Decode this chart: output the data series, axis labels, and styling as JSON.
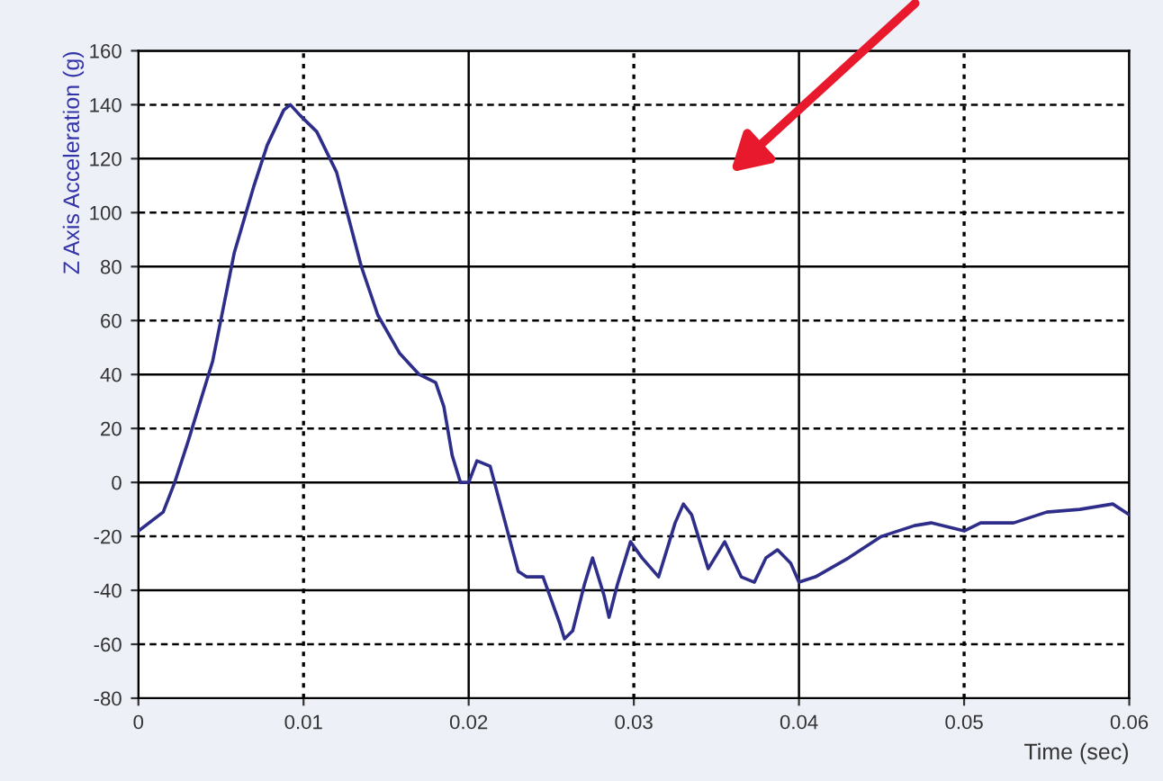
{
  "chart_data": {
    "type": "line",
    "xlabel": "Time (sec)",
    "ylabel": "Z Axis Acceleration (g)",
    "xlim": [
      0,
      0.06
    ],
    "ylim": [
      -80,
      160
    ],
    "xticks": [
      {
        "value": 0,
        "label": "0"
      },
      0.01,
      0.02,
      0.03,
      0.04,
      0.05,
      0.06
    ],
    "yticks": [
      -80,
      -60,
      -40,
      -20,
      0,
      20,
      40,
      60,
      80,
      100,
      120,
      140,
      160
    ],
    "grid": true,
    "marker": "none",
    "line_style": "solid",
    "series": [
      {
        "color": "#2e2e8a",
        "x": [
          0,
          0.0015,
          0.0022,
          0.003,
          0.0045,
          0.0058,
          0.007,
          0.0078,
          0.0088,
          0.0092,
          0.0098,
          0.0108,
          0.012,
          0.0135,
          0.0145,
          0.0158,
          0.017,
          0.018,
          0.0185,
          0.019,
          0.0195,
          0.02,
          0.0205,
          0.0213,
          0.022,
          0.023,
          0.0235,
          0.0245,
          0.0255,
          0.0258,
          0.0263,
          0.027,
          0.0275,
          0.0282,
          0.0285,
          0.029,
          0.0298,
          0.0305,
          0.0315,
          0.0325,
          0.033,
          0.0335,
          0.0345,
          0.0355,
          0.0365,
          0.0373,
          0.038,
          0.0387,
          0.0395,
          0.04,
          0.041,
          0.043,
          0.045,
          0.047,
          0.048,
          0.05,
          0.051,
          0.053,
          0.055,
          0.057,
          0.059,
          0.06
        ],
        "values": [
          -18,
          -11,
          0,
          15,
          45,
          85,
          110,
          125,
          138,
          140,
          136,
          130,
          115,
          80,
          62,
          48,
          40,
          37,
          28,
          10,
          0,
          0,
          8,
          6,
          -10,
          -33,
          -35,
          -35,
          -52,
          -58,
          -55,
          -38,
          -28,
          -42,
          -50,
          -38,
          -22,
          -28,
          -35,
          -15,
          -8,
          -12,
          -32,
          -22,
          -35,
          -37,
          -28,
          -25,
          -30,
          -37,
          -35,
          -28,
          -20,
          -16,
          -15,
          -18,
          -15,
          -15,
          -11,
          -10,
          -8,
          -12
        ]
      }
    ]
  }
}
